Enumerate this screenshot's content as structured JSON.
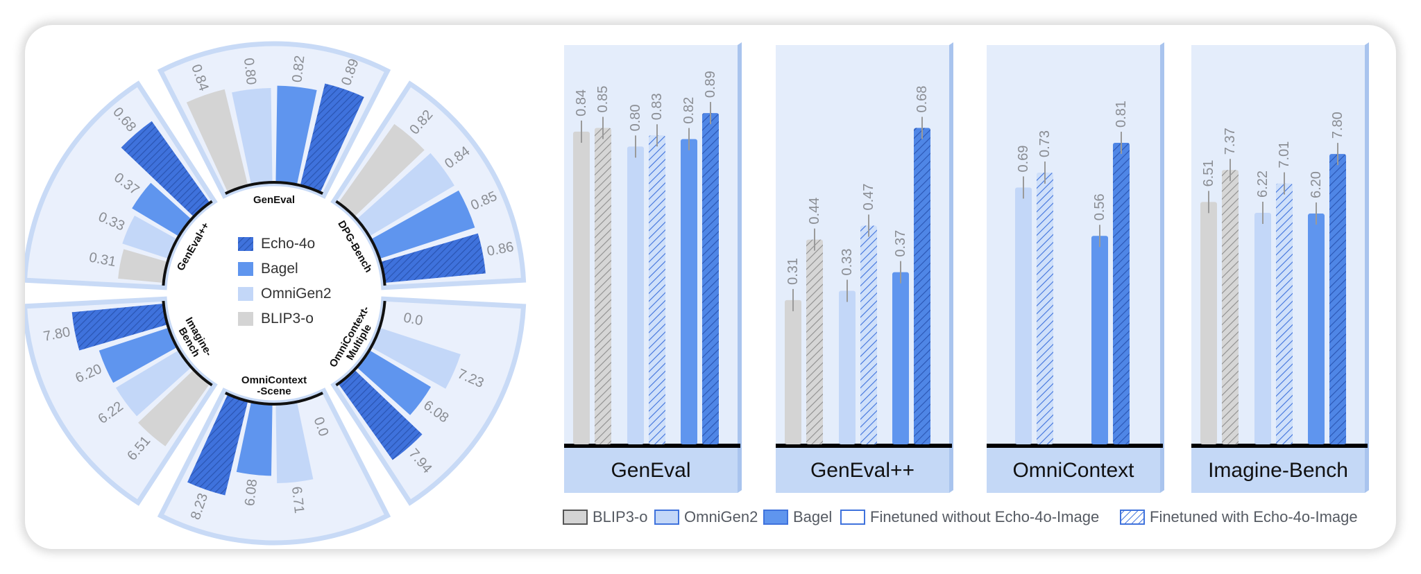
{
  "colors": {
    "echo": "#3f72dc",
    "bagel": "#5f95ee",
    "omnigen": "#c3d7f8",
    "blip": "#d4d4d4",
    "sector_bg": "#eaf0fc",
    "sector_edge": "#c8daf6",
    "panel_bg": "#e4edfb",
    "label_bg": "#c4d8f6"
  },
  "radial_chart": {
    "center_legend": [
      {
        "key": "echo",
        "label": "Echo-4o"
      },
      {
        "key": "bagel",
        "label": "Bagel"
      },
      {
        "key": "omnigen",
        "label": "OmniGen2"
      },
      {
        "key": "blip",
        "label": "BLIP3-o"
      }
    ],
    "benchmarks": [
      {
        "name": "GenEval",
        "lines": [
          "GenEval"
        ],
        "max": 1.0,
        "bars": [
          {
            "model": "blip",
            "value": 0.84,
            "label": "0.84"
          },
          {
            "model": "omnigen",
            "value": 0.8,
            "label": "0.80"
          },
          {
            "model": "bagel",
            "value": 0.82,
            "label": "0.82"
          },
          {
            "model": "echo",
            "value": 0.89,
            "label": "0.89"
          }
        ]
      },
      {
        "name": "DPG-Bench",
        "lines": [
          "DPG-Bench"
        ],
        "max": 1.0,
        "bars": [
          {
            "model": "blip",
            "value": 0.82,
            "label": "0.82"
          },
          {
            "model": "omnigen",
            "value": 0.84,
            "label": "0.84"
          },
          {
            "model": "bagel",
            "value": 0.85,
            "label": "0.85"
          },
          {
            "model": "echo",
            "value": 0.86,
            "label": "0.86"
          }
        ]
      },
      {
        "name": "OmniContext-Multiple",
        "lines": [
          "OmniContext-",
          "Multiple"
        ],
        "max": 10.0,
        "bars": [
          {
            "model": "blip",
            "value": 0.0,
            "label": "0.0"
          },
          {
            "model": "omnigen",
            "value": 7.23,
            "label": "7.23"
          },
          {
            "model": "bagel",
            "value": 6.08,
            "label": "6.08"
          },
          {
            "model": "echo",
            "value": 7.94,
            "label": "7.94"
          }
        ]
      },
      {
        "name": "OmniContext-Scene",
        "lines": [
          "OmniContext",
          "-Scene"
        ],
        "max": 10.0,
        "bars": [
          {
            "model": "blip",
            "value": 0.0,
            "label": "0.0"
          },
          {
            "model": "omnigen",
            "value": 6.71,
            "label": "6.71"
          },
          {
            "model": "bagel",
            "value": 6.08,
            "label": "6.08"
          },
          {
            "model": "echo",
            "value": 8.23,
            "label": "8.23"
          }
        ]
      },
      {
        "name": "Imagine-Bench",
        "lines": [
          "Imagine-",
          "Bench"
        ],
        "max": 10.0,
        "bars": [
          {
            "model": "blip",
            "value": 6.51,
            "label": "6.51"
          },
          {
            "model": "omnigen",
            "value": 6.22,
            "label": "6.22"
          },
          {
            "model": "bagel",
            "value": 6.2,
            "label": "6.20"
          },
          {
            "model": "echo",
            "value": 7.8,
            "label": "7.80"
          }
        ]
      },
      {
        "name": "GenEval++",
        "lines": [
          "GenEval++"
        ],
        "max": 0.8,
        "bars": [
          {
            "model": "blip",
            "value": 0.31,
            "label": "0.31"
          },
          {
            "model": "omnigen",
            "value": 0.33,
            "label": "0.33"
          },
          {
            "model": "bagel",
            "value": 0.37,
            "label": "0.37"
          },
          {
            "model": "echo",
            "value": 0.68,
            "label": "0.68"
          }
        ]
      }
    ]
  },
  "chart_data": {
    "type": "bar",
    "panels": [
      {
        "title": "GenEval",
        "max": 1.0,
        "bars": [
          {
            "model": "BLIP3-o",
            "finetuned": false,
            "value": 0.84,
            "label": "0.84"
          },
          {
            "model": "BLIP3-o",
            "finetuned": true,
            "value": 0.85,
            "label": "0.85"
          },
          {
            "model": "OmniGen2",
            "finetuned": false,
            "value": 0.8,
            "label": "0.80"
          },
          {
            "model": "OmniGen2",
            "finetuned": true,
            "value": 0.83,
            "label": "0.83"
          },
          {
            "model": "Bagel",
            "finetuned": false,
            "value": 0.82,
            "label": "0.82"
          },
          {
            "model": "Bagel",
            "finetuned": true,
            "value": 0.89,
            "label": "0.89"
          }
        ]
      },
      {
        "title": "GenEval++",
        "max": 0.8,
        "bars": [
          {
            "model": "BLIP3-o",
            "finetuned": false,
            "value": 0.31,
            "label": "0.31"
          },
          {
            "model": "BLIP3-o",
            "finetuned": true,
            "value": 0.44,
            "label": "0.44"
          },
          {
            "model": "OmniGen2",
            "finetuned": false,
            "value": 0.33,
            "label": "0.33"
          },
          {
            "model": "OmniGen2",
            "finetuned": true,
            "value": 0.47,
            "label": "0.47"
          },
          {
            "model": "Bagel",
            "finetuned": false,
            "value": 0.37,
            "label": "0.37"
          },
          {
            "model": "Bagel",
            "finetuned": true,
            "value": 0.68,
            "label": "0.68"
          }
        ]
      },
      {
        "title": "OmniContext",
        "max": 1.0,
        "bars": [
          {
            "model": "OmniGen2",
            "finetuned": false,
            "value": 0.69,
            "label": "0.69"
          },
          {
            "model": "OmniGen2",
            "finetuned": true,
            "value": 0.73,
            "label": "0.73"
          },
          {
            "model": "Bagel",
            "finetuned": false,
            "value": 0.56,
            "label": "0.56"
          },
          {
            "model": "Bagel",
            "finetuned": true,
            "value": 0.81,
            "label": "0.81"
          }
        ]
      },
      {
        "title": "Imagine-Bench",
        "max": 10.0,
        "bars": [
          {
            "model": "BLIP3-o",
            "finetuned": false,
            "value": 6.51,
            "label": "6.51"
          },
          {
            "model": "BLIP3-o",
            "finetuned": true,
            "value": 7.37,
            "label": "7.37"
          },
          {
            "model": "OmniGen2",
            "finetuned": false,
            "value": 6.22,
            "label": "6.22"
          },
          {
            "model": "OmniGen2",
            "finetuned": true,
            "value": 7.01,
            "label": "7.01"
          },
          {
            "model": "Bagel",
            "finetuned": false,
            "value": 6.2,
            "label": "6.20"
          },
          {
            "model": "Bagel",
            "finetuned": true,
            "value": 7.8,
            "label": "7.80"
          }
        ]
      }
    ],
    "legend": [
      {
        "label": "BLIP3-o",
        "key": "blip",
        "hatched": false
      },
      {
        "label": "OmniGen2",
        "key": "omnigen",
        "hatched": false
      },
      {
        "label": "Bagel",
        "key": "bagel",
        "hatched": false
      },
      {
        "label": "Finetuned without Echo-4o-Image",
        "key": "none",
        "hatched": false
      },
      {
        "label": "Finetuned with Echo-4o-Image",
        "key": "none",
        "hatched": true
      }
    ]
  }
}
